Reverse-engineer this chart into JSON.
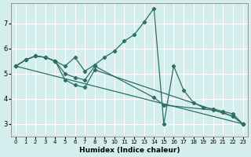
{
  "title": "",
  "xlabel": "Humidex (Indice chaleur)",
  "background_color": "#d4eeee",
  "grid_color": "#ffffff",
  "line_color": "#2d6e65",
  "xlim": [
    -0.5,
    23.5
  ],
  "ylim": [
    2.5,
    7.8
  ],
  "xticks": [
    0,
    1,
    2,
    3,
    4,
    5,
    6,
    7,
    8,
    9,
    10,
    11,
    12,
    13,
    14,
    15,
    16,
    17,
    18,
    19,
    20,
    21,
    22,
    23
  ],
  "yticks": [
    3,
    4,
    5,
    6,
    7
  ],
  "series": [
    {
      "x": [
        0,
        1,
        2,
        3,
        4,
        5,
        6,
        7,
        8,
        9,
        10,
        11,
        12,
        13,
        14,
        15,
        16,
        17,
        18,
        19,
        20,
        21,
        22,
        23
      ],
      "y": [
        5.3,
        5.55,
        5.7,
        5.65,
        5.5,
        5.3,
        5.65,
        5.1,
        5.35,
        5.65,
        5.9,
        6.3,
        6.55,
        7.05,
        7.6,
        3.0,
        5.3,
        4.35,
        3.85,
        3.65,
        3.6,
        3.5,
        3.4,
        3.0
      ]
    },
    {
      "x": [
        0,
        1,
        2,
        3,
        4,
        5,
        6,
        7,
        8,
        14,
        15,
        20,
        21,
        22,
        23
      ],
      "y": [
        5.3,
        5.55,
        5.7,
        5.65,
        5.5,
        5.0,
        4.85,
        4.75,
        5.3,
        4.05,
        3.75,
        3.55,
        3.45,
        3.3,
        3.0
      ]
    },
    {
      "x": [
        0,
        1,
        2,
        3,
        4,
        5,
        6,
        7,
        8,
        22,
        23
      ],
      "y": [
        5.3,
        5.55,
        5.7,
        5.65,
        5.5,
        4.75,
        4.55,
        4.45,
        5.15,
        3.3,
        3.0
      ]
    },
    {
      "x": [
        0,
        23
      ],
      "y": [
        5.3,
        3.0
      ]
    }
  ]
}
